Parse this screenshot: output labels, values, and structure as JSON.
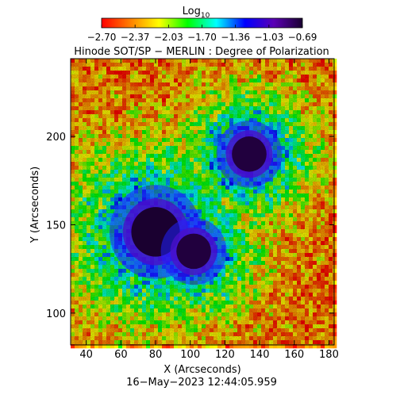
{
  "chart_data": {
    "type": "heatmap",
    "title": "Hinode SOT/SP − MERLIN : Degree of Polarization",
    "colorbar": {
      "label": "Log",
      "label_subscript": "10",
      "ticks": [
        "−2.70",
        "−2.37",
        "−2.03",
        "−1.70",
        "−1.36",
        "−1.03",
        "−0.69"
      ],
      "range": [
        -2.7,
        -0.69
      ],
      "colormap": [
        "#ff0000",
        "#ff7f00",
        "#ffff00",
        "#00ff00",
        "#00ffff",
        "#0000ff",
        "#5b00b5",
        "#1a0030"
      ]
    },
    "xlabel": "X (Arcseconds)",
    "ylabel": "Y (Arcseconds)",
    "xlim": [
      31,
      183
    ],
    "ylim": [
      82,
      244
    ],
    "xticks": [
      40,
      60,
      80,
      100,
      120,
      140,
      160,
      180
    ],
    "yticks": [
      100,
      150,
      200
    ],
    "timestamp": "16−May−2023 12:44:05.959",
    "features": [
      {
        "kind": "sunspot",
        "x": 80,
        "y": 146,
        "r": 14,
        "log10_value": -0.69
      },
      {
        "kind": "sunspot",
        "x": 102,
        "y": 135,
        "r": 10,
        "log10_value": -0.72
      },
      {
        "kind": "sunspot",
        "x": 134,
        "y": 190,
        "r": 10,
        "log10_value": -0.72
      }
    ]
  }
}
